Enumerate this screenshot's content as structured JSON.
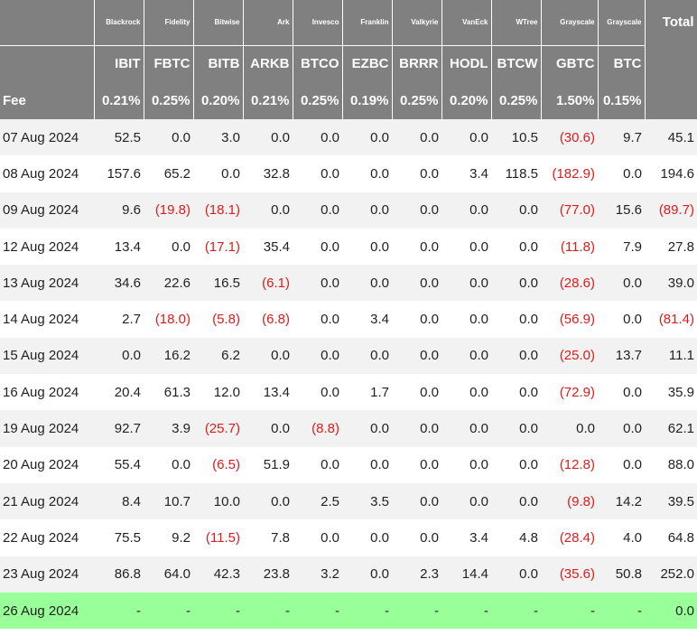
{
  "header": {
    "issuers": [
      "Blackrock",
      "Fidelity",
      "Bitwise",
      "Ark",
      "Invesco",
      "Franklin",
      "Valkyrie",
      "VanEck",
      "WTree",
      "Grayscale",
      "Grayscale"
    ],
    "tickers": [
      "IBIT",
      "FBTC",
      "BITB",
      "ARKB",
      "BTCO",
      "EZBC",
      "BRRR",
      "HODL",
      "BTCW",
      "GBTC",
      "BTC"
    ],
    "fee_label": "Fee",
    "fees": [
      "0.21%",
      "0.25%",
      "0.20%",
      "0.21%",
      "0.25%",
      "0.19%",
      "0.25%",
      "0.20%",
      "0.25%",
      "1.50%",
      "0.15%"
    ],
    "total_label": "Total"
  },
  "rows": [
    {
      "date": "07 Aug 2024",
      "values": [
        "52.5",
        "0.0",
        "3.0",
        "0.0",
        "0.0",
        "0.0",
        "0.0",
        "0.0",
        "10.5",
        "(30.6)",
        "9.7"
      ],
      "total": "45.1"
    },
    {
      "date": "08 Aug 2024",
      "values": [
        "157.6",
        "65.2",
        "0.0",
        "32.8",
        "0.0",
        "0.0",
        "0.0",
        "3.4",
        "118.5",
        "(182.9)",
        "0.0"
      ],
      "total": "194.6"
    },
    {
      "date": "09 Aug 2024",
      "values": [
        "9.6",
        "(19.8)",
        "(18.1)",
        "0.0",
        "0.0",
        "0.0",
        "0.0",
        "0.0",
        "0.0",
        "(77.0)",
        "15.6"
      ],
      "total": "(89.7)"
    },
    {
      "date": "12 Aug 2024",
      "values": [
        "13.4",
        "0.0",
        "(17.1)",
        "35.4",
        "0.0",
        "0.0",
        "0.0",
        "0.0",
        "0.0",
        "(11.8)",
        "7.9"
      ],
      "total": "27.8"
    },
    {
      "date": "13 Aug 2024",
      "values": [
        "34.6",
        "22.6",
        "16.5",
        "(6.1)",
        "0.0",
        "0.0",
        "0.0",
        "0.0",
        "0.0",
        "(28.6)",
        "0.0"
      ],
      "total": "39.0"
    },
    {
      "date": "14 Aug 2024",
      "values": [
        "2.7",
        "(18.0)",
        "(5.8)",
        "(6.8)",
        "0.0",
        "3.4",
        "0.0",
        "0.0",
        "0.0",
        "(56.9)",
        "0.0"
      ],
      "total": "(81.4)"
    },
    {
      "date": "15 Aug 2024",
      "values": [
        "0.0",
        "16.2",
        "6.2",
        "0.0",
        "0.0",
        "0.0",
        "0.0",
        "0.0",
        "0.0",
        "(25.0)",
        "13.7"
      ],
      "total": "11.1"
    },
    {
      "date": "16 Aug 2024",
      "values": [
        "20.4",
        "61.3",
        "12.0",
        "13.4",
        "0.0",
        "1.7",
        "0.0",
        "0.0",
        "0.0",
        "(72.9)",
        "0.0"
      ],
      "total": "35.9"
    },
    {
      "date": "19 Aug 2024",
      "values": [
        "92.7",
        "3.9",
        "(25.7)",
        "0.0",
        "(8.8)",
        "0.0",
        "0.0",
        "0.0",
        "0.0",
        "0.0",
        "0.0"
      ],
      "total": "62.1"
    },
    {
      "date": "20 Aug 2024",
      "values": [
        "55.4",
        "0.0",
        "(6.5)",
        "51.9",
        "0.0",
        "0.0",
        "0.0",
        "0.0",
        "0.0",
        "(12.8)",
        "0.0"
      ],
      "total": "88.0"
    },
    {
      "date": "21 Aug 2024",
      "values": [
        "8.4",
        "10.7",
        "10.0",
        "0.0",
        "2.5",
        "3.5",
        "0.0",
        "0.0",
        "0.0",
        "(9.8)",
        "14.2"
      ],
      "total": "39.5"
    },
    {
      "date": "22 Aug 2024",
      "values": [
        "75.5",
        "9.2",
        "(11.5)",
        "7.8",
        "0.0",
        "0.0",
        "0.0",
        "3.4",
        "4.8",
        "(28.4)",
        "4.0"
      ],
      "total": "64.8"
    },
    {
      "date": "23 Aug 2024",
      "values": [
        "86.8",
        "64.0",
        "42.3",
        "23.8",
        "3.2",
        "0.0",
        "2.3",
        "14.4",
        "0.0",
        "(35.6)",
        "50.8"
      ],
      "total": "252.0"
    },
    {
      "date": "26 Aug 2024",
      "values": [
        "-",
        "-",
        "-",
        "-",
        "-",
        "-",
        "-",
        "-",
        "-",
        "-",
        "-"
      ],
      "total": "0.0",
      "highlight": true
    }
  ],
  "colors": {
    "header_bg": "#808080",
    "row_alt_bg": "#f2f2f2",
    "highlight_bg": "#99ff99",
    "negative_text": "#e01b1b"
  }
}
